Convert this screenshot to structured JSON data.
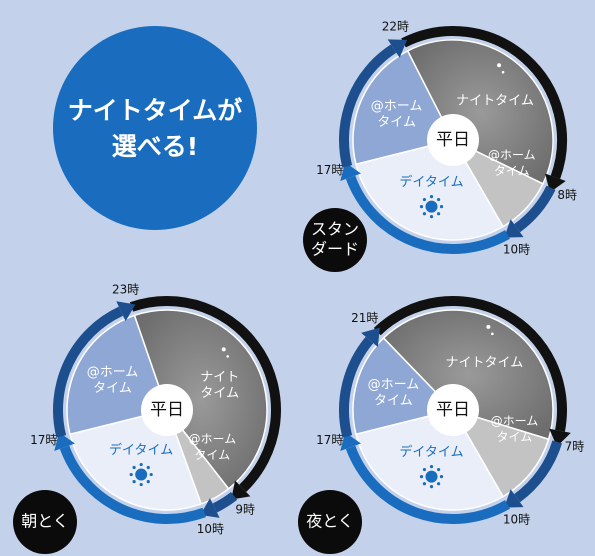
{
  "headline": {
    "lines": [
      "ナイトタイムが",
      "選べる!"
    ]
  },
  "plans": [
    {
      "name_lines": [
        "スタン",
        "ダード"
      ],
      "center": "平日",
      "night": [
        "ナイトタイム"
      ],
      "home_left": [
        "@ホーム",
        "タイム"
      ],
      "day": [
        "デイタイム"
      ],
      "home_right": [
        "@ホーム",
        "タイム"
      ],
      "times": [
        "22時",
        "8時",
        "10時",
        "17時"
      ]
    },
    {
      "name_lines": [
        "朝とく"
      ],
      "center": "平日",
      "night": [
        "ナイト",
        "タイム"
      ],
      "home_left": [
        "@ホーム",
        "タイム"
      ],
      "day": [
        "デイタイム"
      ],
      "home_right": [
        "@ホーム",
        "タイム"
      ],
      "times": [
        "23時",
        "9時",
        "10時",
        "17時"
      ]
    },
    {
      "name_lines": [
        "夜とく"
      ],
      "center": "平日",
      "night": [
        "ナイトタイム"
      ],
      "home_left": [
        "@ホーム",
        "タイム"
      ],
      "day": [
        "デイタイム"
      ],
      "home_right": [
        "@ホーム",
        "タイム"
      ],
      "times": [
        "21時",
        "7時",
        "10時",
        "17時"
      ]
    }
  ]
}
